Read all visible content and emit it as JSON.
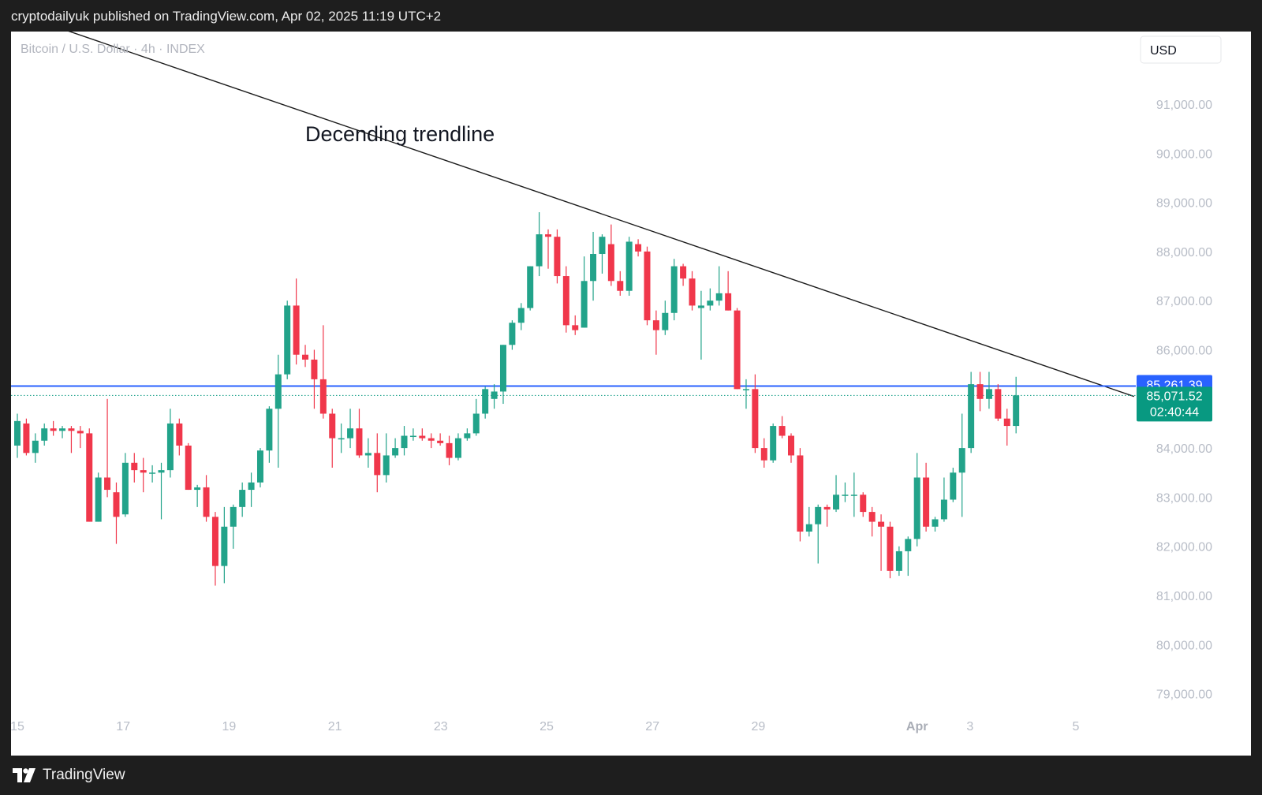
{
  "header": {
    "publish_text": "cryptodailyuk published on TradingView.com, Apr 02, 2025 11:19 UTC+2"
  },
  "footer": {
    "brand": "TradingView",
    "logo_icon": "tradingview-logo-icon"
  },
  "colors": {
    "up": "#22a38a",
    "down": "#f0374b",
    "price_line": "#2962ff",
    "axis_text": "#b8bdc7",
    "countdown_badge": "#089981"
  },
  "chart_data": {
    "type": "candlestick",
    "symbol_legend": "Bitcoin / U.S. Dollar · 4h · INDEX",
    "currency_button": "USD",
    "timeframe": "4h",
    "ylim": [
      78200,
      93000
    ],
    "xlim": [
      0,
      41
    ],
    "y_ticks": [
      "91,000.00",
      "90,000.00",
      "89,000.00",
      "88,000.00",
      "87,000.00",
      "86,000.00",
      "84,000.00",
      "83,000.00",
      "82,000.00",
      "81,000.00",
      "80,000.00",
      "79,000.00"
    ],
    "y_tick_values": [
      91000,
      90000,
      89000,
      88000,
      87000,
      86000,
      84000,
      83000,
      82000,
      81000,
      80000,
      79000
    ],
    "x_ticks": [
      {
        "label": "15",
        "t": 0,
        "bold": false
      },
      {
        "label": "17",
        "t": 4,
        "bold": false
      },
      {
        "label": "19",
        "t": 8,
        "bold": false
      },
      {
        "label": "21",
        "t": 12,
        "bold": false
      },
      {
        "label": "23",
        "t": 16,
        "bold": false
      },
      {
        "label": "25",
        "t": 20,
        "bold": false
      },
      {
        "label": "27",
        "t": 24,
        "bold": false
      },
      {
        "label": "29",
        "t": 28,
        "bold": false
      },
      {
        "label": "Apr",
        "t": 34,
        "bold": true
      },
      {
        "label": "3",
        "t": 36,
        "bold": false
      },
      {
        "label": "5",
        "t": 40,
        "bold": false
      }
    ],
    "candles": [
      {
        "t": 0.0,
        "o": 84050,
        "h": 84700,
        "l": 83800,
        "c": 84550
      },
      {
        "t": 0.34,
        "o": 84500,
        "h": 84600,
        "l": 83850,
        "c": 83900
      },
      {
        "t": 0.68,
        "o": 83900,
        "h": 84300,
        "l": 83700,
        "c": 84150
      },
      {
        "t": 1.02,
        "o": 84150,
        "h": 84500,
        "l": 84050,
        "c": 84400
      },
      {
        "t": 1.36,
        "o": 84400,
        "h": 84550,
        "l": 84250,
        "c": 84350
      },
      {
        "t": 1.7,
        "o": 84350,
        "h": 84450,
        "l": 84200,
        "c": 84400
      },
      {
        "t": 2.04,
        "o": 84400,
        "h": 84450,
        "l": 83900,
        "c": 84350
      },
      {
        "t": 2.38,
        "o": 84350,
        "h": 84450,
        "l": 84000,
        "c": 84300
      },
      {
        "t": 2.72,
        "o": 84300,
        "h": 84400,
        "l": 82500,
        "c": 82500
      },
      {
        "t": 3.06,
        "o": 82500,
        "h": 83500,
        "l": 82500,
        "c": 83400
      },
      {
        "t": 3.4,
        "o": 83400,
        "h": 85000,
        "l": 83000,
        "c": 83150
      },
      {
        "t": 3.74,
        "o": 83100,
        "h": 83300,
        "l": 82050,
        "c": 82600
      },
      {
        "t": 4.08,
        "o": 82650,
        "h": 83900,
        "l": 82600,
        "c": 83700
      },
      {
        "t": 4.42,
        "o": 83700,
        "h": 83900,
        "l": 83300,
        "c": 83550
      },
      {
        "t": 4.76,
        "o": 83550,
        "h": 83800,
        "l": 83100,
        "c": 83500
      },
      {
        "t": 5.1,
        "o": 83500,
        "h": 83650,
        "l": 83300,
        "c": 83500
      },
      {
        "t": 5.44,
        "o": 83500,
        "h": 83700,
        "l": 82550,
        "c": 83550
      },
      {
        "t": 5.78,
        "o": 83550,
        "h": 84800,
        "l": 83400,
        "c": 84500
      },
      {
        "t": 6.12,
        "o": 84500,
        "h": 84600,
        "l": 83850,
        "c": 84050
      },
      {
        "t": 6.46,
        "o": 84050,
        "h": 84100,
        "l": 83150,
        "c": 83150
      },
      {
        "t": 6.8,
        "o": 83150,
        "h": 83250,
        "l": 82800,
        "c": 83200
      },
      {
        "t": 7.14,
        "o": 83200,
        "h": 83450,
        "l": 82500,
        "c": 82600
      },
      {
        "t": 7.48,
        "o": 82600,
        "h": 82700,
        "l": 81200,
        "c": 81600
      },
      {
        "t": 7.82,
        "o": 81600,
        "h": 82800,
        "l": 81250,
        "c": 82400
      },
      {
        "t": 8.16,
        "o": 82400,
        "h": 82850,
        "l": 81950,
        "c": 82800
      },
      {
        "t": 8.5,
        "o": 82800,
        "h": 83300,
        "l": 82600,
        "c": 83150
      },
      {
        "t": 8.84,
        "o": 83150,
        "h": 83500,
        "l": 82800,
        "c": 83300
      },
      {
        "t": 9.18,
        "o": 83300,
        "h": 84000,
        "l": 83200,
        "c": 83950
      },
      {
        "t": 9.52,
        "o": 83950,
        "h": 84850,
        "l": 83700,
        "c": 84800
      },
      {
        "t": 9.86,
        "o": 84800,
        "h": 85900,
        "l": 83600,
        "c": 85500
      },
      {
        "t": 10.2,
        "o": 85500,
        "h": 87000,
        "l": 85400,
        "c": 86900
      },
      {
        "t": 10.54,
        "o": 86900,
        "h": 87450,
        "l": 85700,
        "c": 85900
      },
      {
        "t": 10.88,
        "o": 85900,
        "h": 86100,
        "l": 85650,
        "c": 85800
      },
      {
        "t": 11.22,
        "o": 85800,
        "h": 86000,
        "l": 84800,
        "c": 85400
      },
      {
        "t": 11.56,
        "o": 85400,
        "h": 86500,
        "l": 84600,
        "c": 84700
      },
      {
        "t": 11.9,
        "o": 84700,
        "h": 84800,
        "l": 83600,
        "c": 84200
      },
      {
        "t": 12.24,
        "o": 84200,
        "h": 84500,
        "l": 83900,
        "c": 84200
      },
      {
        "t": 12.58,
        "o": 84200,
        "h": 84800,
        "l": 84000,
        "c": 84400
      },
      {
        "t": 12.92,
        "o": 84400,
        "h": 84800,
        "l": 83800,
        "c": 83850
      },
      {
        "t": 13.26,
        "o": 83850,
        "h": 84200,
        "l": 83600,
        "c": 83900
      },
      {
        "t": 13.6,
        "o": 83900,
        "h": 84300,
        "l": 83100,
        "c": 83450
      },
      {
        "t": 13.94,
        "o": 83450,
        "h": 84300,
        "l": 83300,
        "c": 83850
      },
      {
        "t": 14.28,
        "o": 83850,
        "h": 84200,
        "l": 83800,
        "c": 84000
      },
      {
        "t": 14.62,
        "o": 84000,
        "h": 84450,
        "l": 83850,
        "c": 84250
      },
      {
        "t": 14.96,
        "o": 84250,
        "h": 84400,
        "l": 84150,
        "c": 84250
      },
      {
        "t": 15.3,
        "o": 84250,
        "h": 84400,
        "l": 84150,
        "c": 84200
      },
      {
        "t": 15.64,
        "o": 84200,
        "h": 84300,
        "l": 84000,
        "c": 84150
      },
      {
        "t": 15.98,
        "o": 84150,
        "h": 84300,
        "l": 84050,
        "c": 84100
      },
      {
        "t": 16.32,
        "o": 84100,
        "h": 84250,
        "l": 83650,
        "c": 83800
      },
      {
        "t": 16.66,
        "o": 83800,
        "h": 84300,
        "l": 83750,
        "c": 84200
      },
      {
        "t": 17.0,
        "o": 84200,
        "h": 84400,
        "l": 84150,
        "c": 84300
      },
      {
        "t": 17.34,
        "o": 84300,
        "h": 85000,
        "l": 84250,
        "c": 84700
      },
      {
        "t": 17.68,
        "o": 84700,
        "h": 85250,
        "l": 84600,
        "c": 85200
      },
      {
        "t": 18.02,
        "o": 85000,
        "h": 85300,
        "l": 84800,
        "c": 85150
      },
      {
        "t": 18.36,
        "o": 85150,
        "h": 86100,
        "l": 84900,
        "c": 86100
      },
      {
        "t": 18.7,
        "o": 86100,
        "h": 86600,
        "l": 86000,
        "c": 86550
      },
      {
        "t": 19.04,
        "o": 86550,
        "h": 86950,
        "l": 86400,
        "c": 86850
      },
      {
        "t": 19.38,
        "o": 86850,
        "h": 87700,
        "l": 86800,
        "c": 87700
      },
      {
        "t": 19.72,
        "o": 87700,
        "h": 88800,
        "l": 87500,
        "c": 88350
      },
      {
        "t": 20.06,
        "o": 88350,
        "h": 88450,
        "l": 87650,
        "c": 88300
      },
      {
        "t": 20.4,
        "o": 88300,
        "h": 88450,
        "l": 87350,
        "c": 87500
      },
      {
        "t": 20.74,
        "o": 87500,
        "h": 87700,
        "l": 86350,
        "c": 86500
      },
      {
        "t": 21.08,
        "o": 86500,
        "h": 86700,
        "l": 86300,
        "c": 86400
      },
      {
        "t": 21.42,
        "o": 86450,
        "h": 87900,
        "l": 86450,
        "c": 87400
      },
      {
        "t": 21.76,
        "o": 87400,
        "h": 88400,
        "l": 87000,
        "c": 87950
      },
      {
        "t": 22.1,
        "o": 87950,
        "h": 88350,
        "l": 87550,
        "c": 88300
      },
      {
        "t": 22.44,
        "o": 88150,
        "h": 88550,
        "l": 87300,
        "c": 87400
      },
      {
        "t": 22.78,
        "o": 87400,
        "h": 87600,
        "l": 87100,
        "c": 87200
      },
      {
        "t": 23.12,
        "o": 87200,
        "h": 88300,
        "l": 87100,
        "c": 88200
      },
      {
        "t": 23.46,
        "o": 88150,
        "h": 88250,
        "l": 87900,
        "c": 88000
      },
      {
        "t": 23.8,
        "o": 88000,
        "h": 88100,
        "l": 86500,
        "c": 86600
      },
      {
        "t": 24.14,
        "o": 86600,
        "h": 86800,
        "l": 85900,
        "c": 86400
      },
      {
        "t": 24.48,
        "o": 86400,
        "h": 87000,
        "l": 86300,
        "c": 86750
      },
      {
        "t": 24.82,
        "o": 86750,
        "h": 87850,
        "l": 86600,
        "c": 87700
      },
      {
        "t": 25.16,
        "o": 87700,
        "h": 87750,
        "l": 87300,
        "c": 87450
      },
      {
        "t": 25.5,
        "o": 87450,
        "h": 87600,
        "l": 86800,
        "c": 86900
      },
      {
        "t": 25.84,
        "o": 86850,
        "h": 87200,
        "l": 85800,
        "c": 86900
      },
      {
        "t": 26.18,
        "o": 86900,
        "h": 87250,
        "l": 86800,
        "c": 87000
      },
      {
        "t": 26.52,
        "o": 87000,
        "h": 87700,
        "l": 86900,
        "c": 87150
      },
      {
        "t": 26.86,
        "o": 87150,
        "h": 87600,
        "l": 86800,
        "c": 86800
      },
      {
        "t": 27.2,
        "o": 86800,
        "h": 86850,
        "l": 85200,
        "c": 85200
      },
      {
        "t": 27.54,
        "o": 85200,
        "h": 85400,
        "l": 84800,
        "c": 85200
      },
      {
        "t": 27.88,
        "o": 85200,
        "h": 85500,
        "l": 83900,
        "c": 84000
      },
      {
        "t": 28.22,
        "o": 84000,
        "h": 84200,
        "l": 83600,
        "c": 83750
      },
      {
        "t": 28.56,
        "o": 83750,
        "h": 84500,
        "l": 83700,
        "c": 84450
      },
      {
        "t": 28.9,
        "o": 84450,
        "h": 84650,
        "l": 84200,
        "c": 84250
      },
      {
        "t": 29.24,
        "o": 84250,
        "h": 84300,
        "l": 83700,
        "c": 83850
      },
      {
        "t": 29.58,
        "o": 83850,
        "h": 84000,
        "l": 82100,
        "c": 82300
      },
      {
        "t": 29.92,
        "o": 82300,
        "h": 82800,
        "l": 82200,
        "c": 82450
      },
      {
        "t": 30.26,
        "o": 82450,
        "h": 82850,
        "l": 81650,
        "c": 82800
      },
      {
        "t": 30.6,
        "o": 82800,
        "h": 82850,
        "l": 82400,
        "c": 82750
      },
      {
        "t": 30.94,
        "o": 82750,
        "h": 83450,
        "l": 82700,
        "c": 83050
      },
      {
        "t": 31.28,
        "o": 83050,
        "h": 83300,
        "l": 82900,
        "c": 83050
      },
      {
        "t": 31.62,
        "o": 83050,
        "h": 83500,
        "l": 82600,
        "c": 83050
      },
      {
        "t": 31.96,
        "o": 83050,
        "h": 83100,
        "l": 82600,
        "c": 82700
      },
      {
        "t": 32.3,
        "o": 82700,
        "h": 82800,
        "l": 82200,
        "c": 82500
      },
      {
        "t": 32.64,
        "o": 82500,
        "h": 82650,
        "l": 81500,
        "c": 82400
      },
      {
        "t": 32.98,
        "o": 82400,
        "h": 82500,
        "l": 81350,
        "c": 81500
      },
      {
        "t": 33.32,
        "o": 81500,
        "h": 82000,
        "l": 81400,
        "c": 81900
      },
      {
        "t": 33.66,
        "o": 81900,
        "h": 82200,
        "l": 81400,
        "c": 82150
      },
      {
        "t": 34.0,
        "o": 82150,
        "h": 83900,
        "l": 82000,
        "c": 83400
      },
      {
        "t": 34.34,
        "o": 83400,
        "h": 83700,
        "l": 82300,
        "c": 82400
      },
      {
        "t": 34.68,
        "o": 82400,
        "h": 82600,
        "l": 82300,
        "c": 82550
      },
      {
        "t": 35.02,
        "o": 82550,
        "h": 83400,
        "l": 82500,
        "c": 82950
      },
      {
        "t": 35.36,
        "o": 82950,
        "h": 83600,
        "l": 82900,
        "c": 83500
      },
      {
        "t": 35.7,
        "o": 83500,
        "h": 84700,
        "l": 82600,
        "c": 84000
      },
      {
        "t": 36.04,
        "o": 84000,
        "h": 85550,
        "l": 83900,
        "c": 85300
      },
      {
        "t": 36.38,
        "o": 85300,
        "h": 85550,
        "l": 84750,
        "c": 85000
      },
      {
        "t": 36.72,
        "o": 85000,
        "h": 85550,
        "l": 84800,
        "c": 85200
      },
      {
        "t": 37.06,
        "o": 85200,
        "h": 85300,
        "l": 84550,
        "c": 84600
      },
      {
        "t": 37.4,
        "o": 84600,
        "h": 84800,
        "l": 84050,
        "c": 84450
      },
      {
        "t": 37.74,
        "o": 84450,
        "h": 85450,
        "l": 84300,
        "c": 85071.52
      }
    ],
    "annotations": [
      {
        "type": "trendline",
        "label": "Decending trendline",
        "points": [
          {
            "t": -0.2,
            "y": 92880
          },
          {
            "t": 42.2,
            "y": 85050
          }
        ]
      }
    ],
    "price_lines": [
      {
        "name": "high-level",
        "value": 85261.39,
        "label": "85,261.39",
        "style": "solid"
      },
      {
        "name": "last-price",
        "value": 85071.52,
        "label": "85,071.52",
        "countdown": "02:40:44",
        "style": "dotted"
      }
    ]
  }
}
